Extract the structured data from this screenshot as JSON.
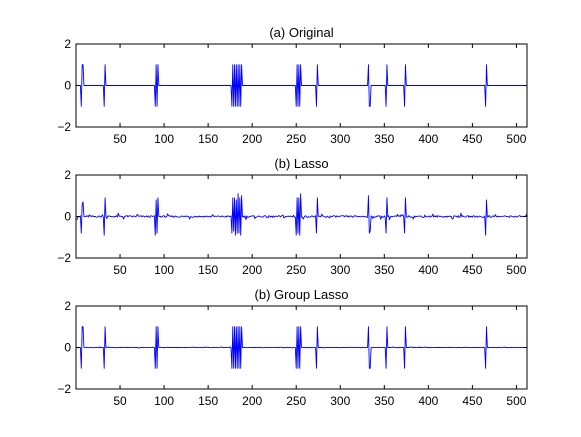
{
  "figure": {
    "background": "#ffffff",
    "axis_color": "#000000",
    "line_color": "#0000ff"
  },
  "chart_data": [
    {
      "type": "line",
      "title": "(a) Original",
      "xlabel": "",
      "ylabel": "",
      "xlim": [
        0,
        512
      ],
      "ylim": [
        -2,
        2
      ],
      "xticks": [
        50,
        100,
        150,
        200,
        250,
        300,
        350,
        400,
        450,
        500
      ],
      "yticks": [
        -2,
        0,
        2
      ],
      "grid": false,
      "series": [
        {
          "color": "#0000ff",
          "blocks": [
            {
              "x": 5,
              "values": [
                -1,
                1,
                1
              ]
            },
            {
              "x": 31,
              "values": [
                -1,
                1
              ]
            },
            {
              "x": 89,
              "values": [
                -1,
                1,
                -1,
                1
              ]
            },
            {
              "x": 176,
              "values": [
                -1,
                1,
                -1,
                1,
                -1,
                1,
                -1,
                1,
                -1,
                1,
                -1,
                1
              ]
            },
            {
              "x": 249,
              "values": [
                -1,
                1,
                -1,
                1,
                -1,
                1
              ]
            },
            {
              "x": 272,
              "values": [
                -1,
                1
              ]
            },
            {
              "x": 331,
              "values": [
                1,
                -1,
                -1
              ]
            },
            {
              "x": 351,
              "values": [
                -1,
                1
              ]
            },
            {
              "x": 372,
              "values": [
                -1,
                1
              ]
            },
            {
              "x": 464,
              "values": [
                -1,
                1
              ]
            }
          ],
          "noise": 0
        }
      ]
    },
    {
      "type": "line",
      "title": "(b) Lasso",
      "xlabel": "",
      "ylabel": "",
      "xlim": [
        0,
        512
      ],
      "ylim": [
        -2,
        2
      ],
      "xticks": [
        50,
        100,
        150,
        200,
        250,
        300,
        350,
        400,
        450,
        500
      ],
      "yticks": [
        -2,
        0,
        2
      ],
      "grid": false,
      "series": [
        {
          "color": "#0000ff",
          "blocks": [
            {
              "x": 5,
              "values": [
                -0.8,
                0.6,
                0.7
              ]
            },
            {
              "x": 31,
              "values": [
                -0.9,
                0.9
              ]
            },
            {
              "x": 89,
              "values": [
                -0.9,
                0.8,
                -0.8,
                0.9
              ]
            },
            {
              "x": 176,
              "values": [
                -0.8,
                0.9,
                -0.7,
                0.9,
                -0.9,
                0.8,
                -0.8,
                1.1,
                -0.8,
                0.9,
                -0.9,
                1.0
              ]
            },
            {
              "x": 249,
              "values": [
                -0.9,
                0.9,
                -0.8,
                0.9,
                -0.9,
                1.1
              ]
            },
            {
              "x": 272,
              "values": [
                -0.8,
                0.9
              ]
            },
            {
              "x": 331,
              "values": [
                1.0,
                -0.8,
                -0.7
              ]
            },
            {
              "x": 351,
              "values": [
                -0.8,
                0.9
              ]
            },
            {
              "x": 372,
              "values": [
                -0.8,
                0.9
              ]
            },
            {
              "x": 464,
              "values": [
                -0.9,
                0.8
              ]
            }
          ],
          "noise": 0.15
        }
      ]
    },
    {
      "type": "line",
      "title": "(b) Group Lasso",
      "xlabel": "",
      "ylabel": "",
      "xlim": [
        0,
        512
      ],
      "ylim": [
        -2,
        2
      ],
      "xticks": [
        50,
        100,
        150,
        200,
        250,
        300,
        350,
        400,
        450,
        500
      ],
      "yticks": [
        -2,
        0,
        2
      ],
      "grid": false,
      "series": [
        {
          "color": "#0000ff",
          "blocks": [
            {
              "x": 5,
              "values": [
                -1,
                1,
                1
              ]
            },
            {
              "x": 31,
              "values": [
                -1,
                1
              ]
            },
            {
              "x": 89,
              "values": [
                -1,
                1,
                -1,
                1
              ]
            },
            {
              "x": 176,
              "values": [
                -1,
                1,
                -1,
                1,
                -1,
                1,
                -1,
                1,
                -1,
                1,
                -1,
                1
              ]
            },
            {
              "x": 249,
              "values": [
                -1,
                1,
                -1,
                1,
                -1,
                1
              ]
            },
            {
              "x": 272,
              "values": [
                -1,
                1
              ]
            },
            {
              "x": 331,
              "values": [
                1,
                -1,
                -1
              ]
            },
            {
              "x": 351,
              "values": [
                -1,
                1
              ]
            },
            {
              "x": 372,
              "values": [
                -1,
                1
              ]
            },
            {
              "x": 464,
              "values": [
                -1,
                1
              ]
            }
          ],
          "noise": 0.03
        }
      ]
    }
  ]
}
